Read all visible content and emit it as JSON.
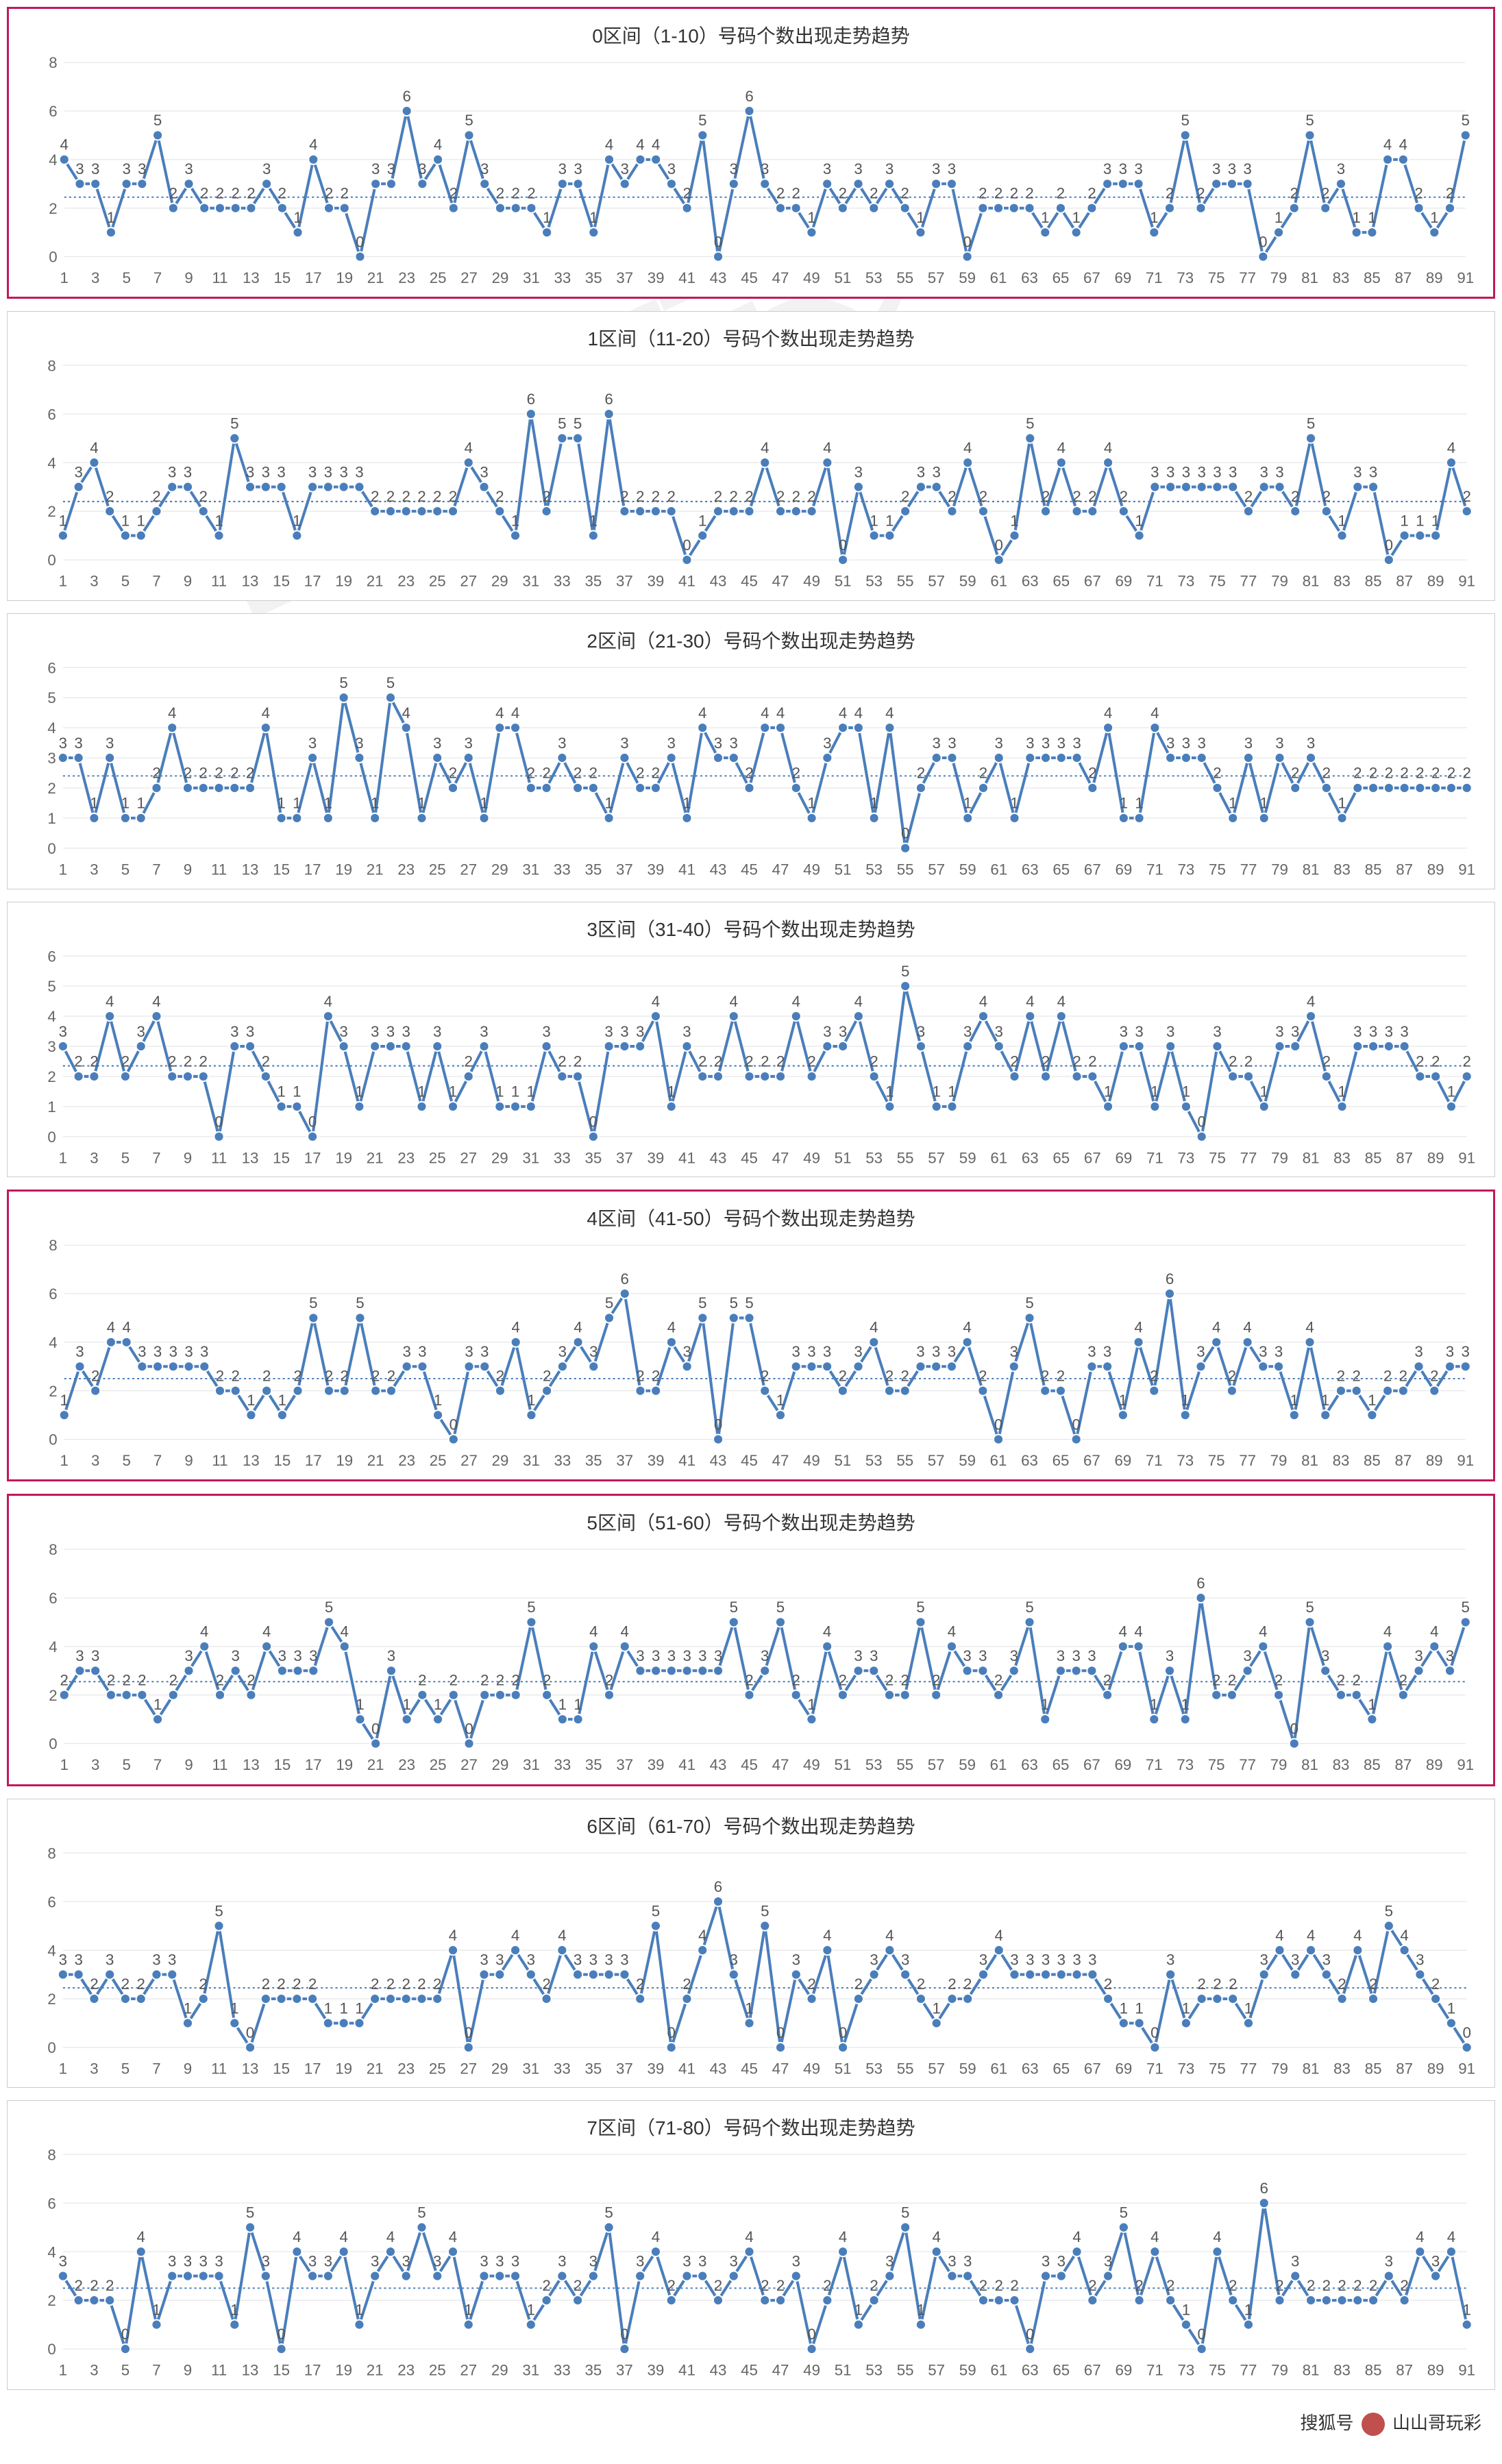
{
  "meta": {
    "line_color": "#4a7ebb",
    "marker_color": "#4a7ebb",
    "grid_color": "#e0e0e0",
    "avg_line_color": "#4a7ebb",
    "highlight_border": "#c2185b",
    "bg": "#ffffff",
    "marker_radius": 7,
    "line_width": 4,
    "title_fontsize": 28,
    "axis_fontsize": 22,
    "datalabel_fontsize": 22
  },
  "x_start": 1,
  "x_end": 91,
  "x_tick_step": 2,
  "watermark_text": "山山哥玩彩",
  "footer": {
    "prefix": "搜狐号",
    "author": "山山哥玩彩"
  },
  "charts": [
    {
      "id": "zone0",
      "title": "0区间（1-10）号码个数出现走势趋势",
      "highlight": true,
      "ylim": [
        0,
        8
      ],
      "ytick_step": 2,
      "avg": 2.45,
      "values": [
        4,
        3,
        3,
        1,
        3,
        3,
        5,
        2,
        3,
        2,
        2,
        2,
        2,
        3,
        2,
        1,
        4,
        2,
        2,
        0,
        3,
        3,
        6,
        3,
        4,
        2,
        5,
        3,
        2,
        2,
        2,
        1,
        3,
        3,
        1,
        4,
        3,
        4,
        4,
        3,
        2,
        5,
        0,
        3,
        6,
        3,
        2,
        2,
        1,
        3,
        2,
        3,
        2,
        3,
        2,
        1,
        3,
        3,
        0,
        2,
        2,
        2,
        2,
        1,
        2,
        1,
        2,
        3,
        3,
        3,
        1,
        2,
        5,
        2,
        3,
        3,
        3,
        0,
        1,
        2,
        5,
        2,
        3,
        1,
        1,
        4,
        4,
        2,
        1,
        2,
        5
      ]
    },
    {
      "id": "zone1",
      "title": "1区间（11-20）号码个数出现走势趋势",
      "highlight": false,
      "ylim": [
        0,
        8
      ],
      "ytick_step": 2,
      "avg": 2.4,
      "values": [
        1,
        3,
        4,
        2,
        1,
        1,
        2,
        3,
        3,
        2,
        1,
        5,
        3,
        3,
        3,
        1,
        3,
        3,
        3,
        3,
        2,
        2,
        2,
        2,
        2,
        2,
        4,
        3,
        2,
        1,
        6,
        2,
        5,
        5,
        1,
        6,
        2,
        2,
        2,
        2,
        0,
        1,
        2,
        2,
        2,
        4,
        2,
        2,
        2,
        4,
        0,
        3,
        1,
        1,
        2,
        3,
        3,
        2,
        4,
        2,
        0,
        1,
        5,
        2,
        4,
        2,
        2,
        4,
        2,
        1,
        3,
        3,
        3,
        3,
        3,
        3,
        2,
        3,
        3,
        2,
        5,
        2,
        1,
        3,
        3,
        0,
        1,
        1,
        1,
        4,
        2
      ]
    },
    {
      "id": "zone2",
      "title": "2区间（21-30）号码个数出现走势趋势",
      "highlight": false,
      "ylim": [
        0,
        6
      ],
      "ytick_step": 1,
      "avg": 2.4,
      "values": [
        3,
        3,
        1,
        3,
        1,
        1,
        2,
        4,
        2,
        2,
        2,
        2,
        2,
        4,
        1,
        1,
        3,
        1,
        5,
        3,
        1,
        5,
        4,
        1,
        3,
        2,
        3,
        1,
        4,
        4,
        2,
        2,
        3,
        2,
        2,
        1,
        3,
        2,
        2,
        3,
        1,
        4,
        3,
        3,
        2,
        4,
        4,
        2,
        1,
        3,
        4,
        4,
        1,
        4,
        0,
        2,
        3,
        3,
        1,
        2,
        3,
        1,
        3,
        3,
        3,
        3,
        2,
        4,
        1,
        1,
        4,
        3,
        3,
        3,
        2,
        1,
        3,
        1,
        3,
        2,
        3,
        2,
        1,
        2,
        2,
        2,
        2,
        2,
        2,
        2,
        2
      ]
    },
    {
      "id": "zone3",
      "title": "3区间（31-40）号码个数出现走势趋势",
      "highlight": false,
      "ylim": [
        0,
        6
      ],
      "ytick_step": 1,
      "avg": 2.35,
      "values": [
        3,
        2,
        2,
        4,
        2,
        3,
        4,
        2,
        2,
        2,
        0,
        3,
        3,
        2,
        1,
        1,
        0,
        4,
        3,
        1,
        3,
        3,
        3,
        1,
        3,
        1,
        2,
        3,
        1,
        1,
        1,
        3,
        2,
        2,
        0,
        3,
        3,
        3,
        4,
        1,
        3,
        2,
        2,
        4,
        2,
        2,
        2,
        4,
        2,
        3,
        3,
        4,
        2,
        1,
        5,
        3,
        1,
        1,
        3,
        4,
        3,
        2,
        4,
        2,
        4,
        2,
        2,
        1,
        3,
        3,
        1,
        3,
        1,
        0,
        3,
        2,
        2,
        1,
        3,
        3,
        4,
        2,
        1,
        3,
        3,
        3,
        3,
        2,
        2,
        1,
        2
      ]
    },
    {
      "id": "zone4",
      "title": "4区间（41-50）号码个数出现走势趋势",
      "highlight": true,
      "ylim": [
        0,
        8
      ],
      "ytick_step": 2,
      "avg": 2.5,
      "values": [
        1,
        3,
        2,
        4,
        4,
        3,
        3,
        3,
        3,
        3,
        2,
        2,
        1,
        2,
        1,
        2,
        5,
        2,
        2,
        5,
        2,
        2,
        3,
        3,
        1,
        0,
        3,
        3,
        2,
        4,
        1,
        2,
        3,
        4,
        3,
        5,
        6,
        2,
        2,
        4,
        3,
        5,
        0,
        5,
        5,
        2,
        1,
        3,
        3,
        3,
        2,
        3,
        4,
        2,
        2,
        3,
        3,
        3,
        4,
        2,
        0,
        3,
        5,
        2,
        2,
        0,
        3,
        3,
        1,
        4,
        2,
        6,
        1,
        3,
        4,
        2,
        4,
        3,
        3,
        1,
        4,
        1,
        2,
        2,
        1,
        2,
        2,
        3,
        2,
        3,
        3
      ]
    },
    {
      "id": "zone5",
      "title": "5区间（51-60）号码个数出现走势趋势",
      "highlight": true,
      "ylim": [
        0,
        8
      ],
      "ytick_step": 2,
      "avg": 2.55,
      "values": [
        2,
        3,
        3,
        2,
        2,
        2,
        1,
        2,
        3,
        4,
        2,
        3,
        2,
        4,
        3,
        3,
        3,
        5,
        4,
        1,
        0,
        3,
        1,
        2,
        1,
        2,
        0,
        2,
        2,
        2,
        5,
        2,
        1,
        1,
        4,
        2,
        4,
        3,
        3,
        3,
        3,
        3,
        3,
        5,
        2,
        3,
        5,
        2,
        1,
        4,
        2,
        3,
        3,
        2,
        2,
        5,
        2,
        4,
        3,
        3,
        2,
        3,
        5,
        1,
        3,
        3,
        3,
        2,
        4,
        4,
        1,
        3,
        1,
        6,
        2,
        2,
        3,
        4,
        2,
        0,
        5,
        3,
        2,
        2,
        1,
        4,
        2,
        3,
        4,
        3,
        5
      ]
    },
    {
      "id": "zone6",
      "title": "6区间（61-70）号码个数出现走势趋势",
      "highlight": false,
      "ylim": [
        0,
        8
      ],
      "ytick_step": 2,
      "avg": 2.45,
      "values": [
        3,
        3,
        2,
        3,
        2,
        2,
        3,
        3,
        1,
        2,
        5,
        1,
        0,
        2,
        2,
        2,
        2,
        1,
        1,
        1,
        2,
        2,
        2,
        2,
        2,
        4,
        0,
        3,
        3,
        4,
        3,
        2,
        4,
        3,
        3,
        3,
        3,
        2,
        5,
        0,
        2,
        4,
        6,
        3,
        1,
        5,
        0,
        3,
        2,
        4,
        0,
        2,
        3,
        4,
        3,
        2,
        1,
        2,
        2,
        3,
        4,
        3,
        3,
        3,
        3,
        3,
        3,
        2,
        1,
        1,
        0,
        3,
        1,
        2,
        2,
        2,
        1,
        3,
        4,
        3,
        4,
        3,
        2,
        4,
        2,
        5,
        4,
        3,
        2,
        1,
        0
      ]
    },
    {
      "id": "zone7",
      "title": "7区间（71-80）号码个数出现走势趋势",
      "highlight": false,
      "ylim": [
        0,
        8
      ],
      "ytick_step": 2,
      "avg": 2.5,
      "values": [
        3,
        2,
        2,
        2,
        0,
        4,
        1,
        3,
        3,
        3,
        3,
        1,
        5,
        3,
        0,
        4,
        3,
        3,
        4,
        1,
        3,
        4,
        3,
        5,
        3,
        4,
        1,
        3,
        3,
        3,
        1,
        2,
        3,
        2,
        3,
        5,
        0,
        3,
        4,
        2,
        3,
        3,
        2,
        3,
        4,
        2,
        2,
        3,
        0,
        2,
        4,
        1,
        2,
        3,
        5,
        1,
        4,
        3,
        3,
        2,
        2,
        2,
        0,
        3,
        3,
        4,
        2,
        3,
        5,
        2,
        4,
        2,
        1,
        0,
        4,
        2,
        1,
        6,
        2,
        3,
        2,
        2,
        2,
        2,
        2,
        3,
        2,
        4,
        3,
        4,
        1
      ]
    }
  ]
}
